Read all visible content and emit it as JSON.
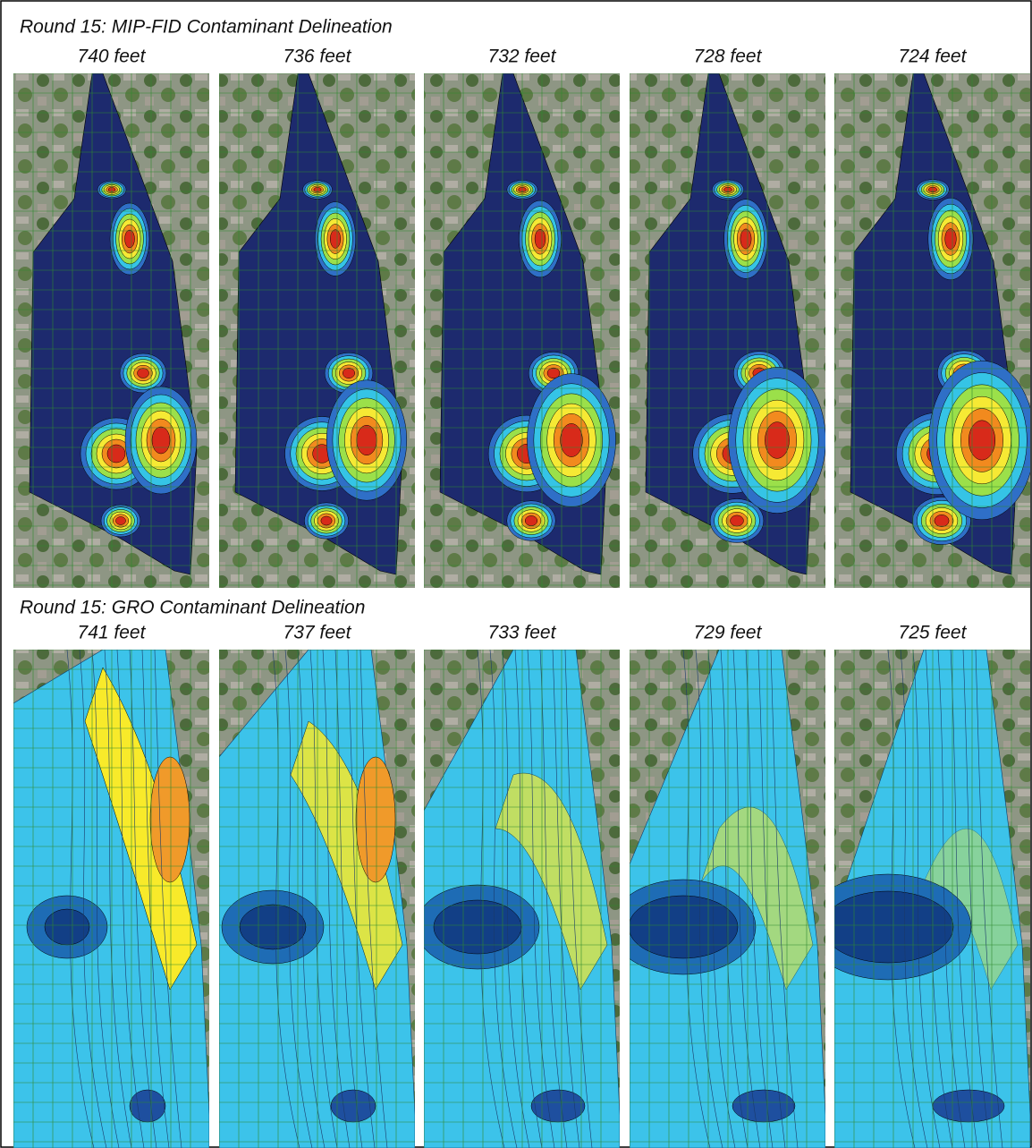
{
  "sections": [
    {
      "title": "Round 15: MIP-FID Contaminant Delineation",
      "panels": [
        "740 feet",
        "736 feet",
        "732 feet",
        "728 feet",
        "724 feet"
      ]
    },
    {
      "title": "Round 15: GRO Contaminant Delineation",
      "panels": [
        "741 feet",
        "737 feet",
        "733 feet",
        "729 feet",
        "725 feet"
      ]
    }
  ]
}
